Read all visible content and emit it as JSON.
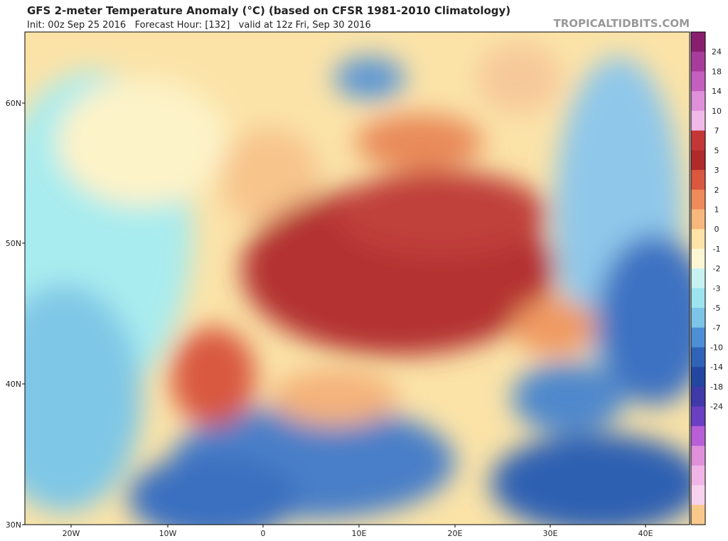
{
  "header": {
    "title": "GFS 2-meter Temperature Anomaly (°C) (based on CFSR 1981-2010 Climatology)",
    "subtitle": "Init: 00z Sep 25 2016   Forecast Hour: [132]   valid at 12z Fri, Sep 30 2016",
    "source": "TROPICALTIDBITS.COM"
  },
  "map": {
    "lat_labels": [
      "60N",
      "50N",
      "40N",
      "30N"
    ],
    "lon_labels": [
      "20W",
      "10W",
      "0",
      "10E",
      "20E",
      "30E",
      "40E"
    ]
  },
  "colorbar": {
    "labels": [
      24,
      18,
      14,
      10,
      7,
      5,
      3,
      2,
      1,
      0,
      -1,
      -2,
      -3,
      -5,
      -7,
      -10,
      -14,
      -18,
      -24
    ]
  }
}
